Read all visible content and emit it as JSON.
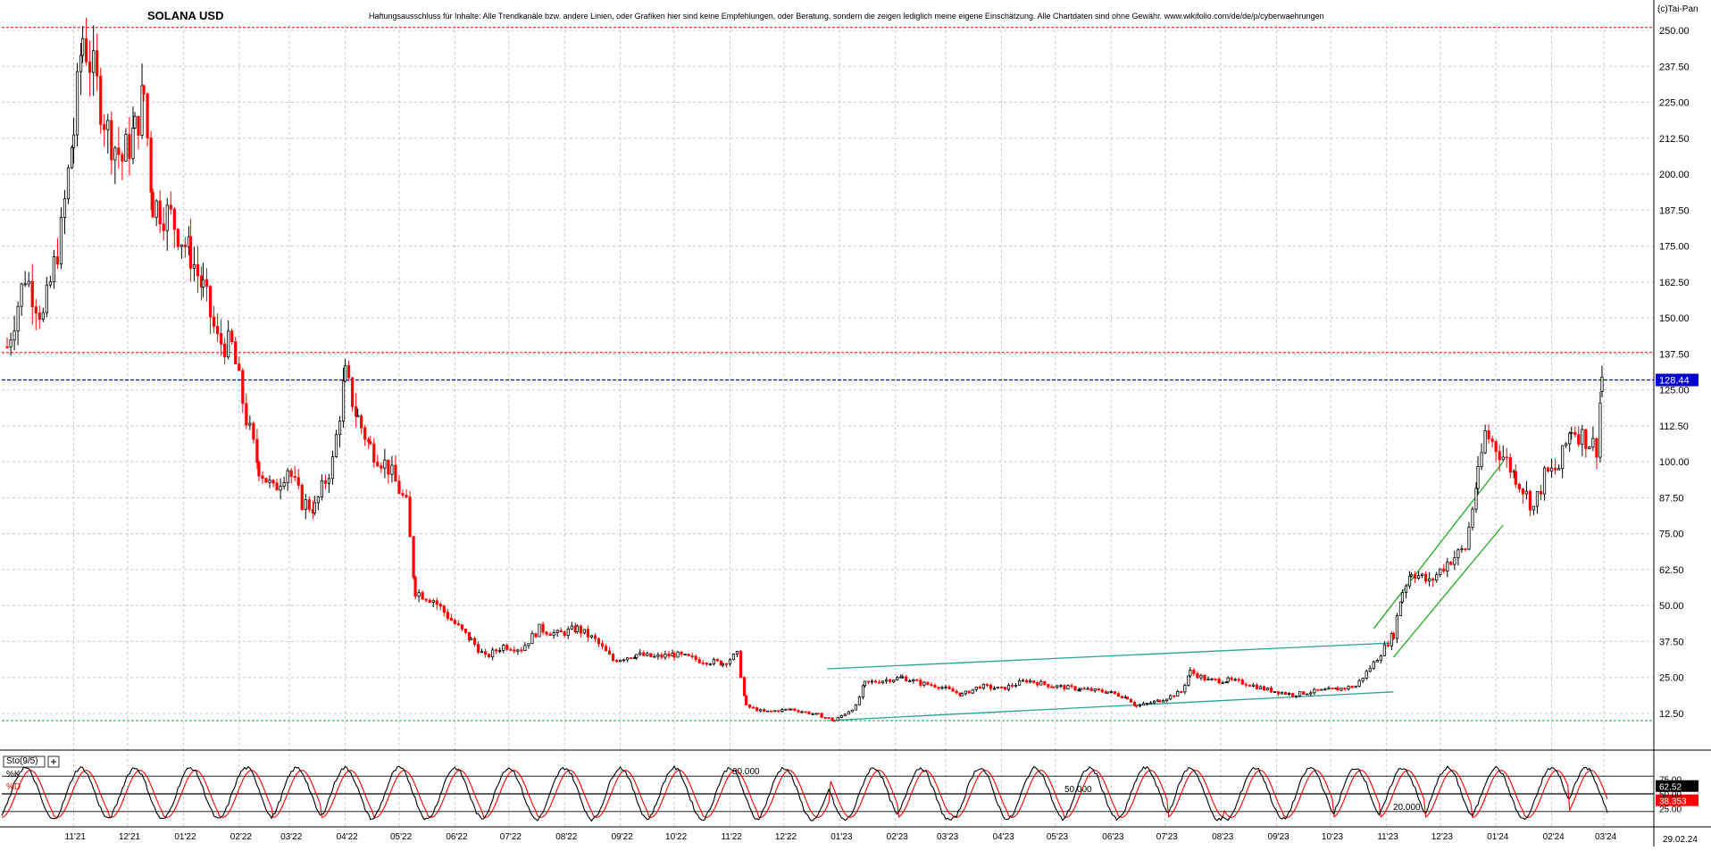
{
  "header": {
    "title": "SOLANA USD",
    "disclaimer": "Haftungsausschluss für Inhalte: Alle Trendkanäle bzw. andere Linien, oder Grafiken hier sind keine Empfehlungen, oder Beratung, sondern die zeigen lediglich meine eigene Einschätzung. Alle Chartdaten sind ohne Gewähr. www.wikifolio.com/de/de/p/cyberwaehrungen",
    "copyright": "(c)Tai-Pan"
  },
  "colors": {
    "grid": "#c8c8c8",
    "up_candle": "#000000",
    "down_candle": "#ff0000",
    "trend_channel": "#2aa198",
    "trend_up": "#22aa22",
    "last_price_line": "#0000cc",
    "resistance_line": "#ff0000",
    "support_line": "#00aa44",
    "stoch_k": "#000000",
    "stoch_d": "#ff0000"
  },
  "chart_data": [
    {
      "type": "candlestick",
      "title": "SOLANA USD",
      "x_labels": [
        "11'21",
        "12'21",
        "01'22",
        "02'22",
        "03'22",
        "04'22",
        "05'22",
        "06'22",
        "07'22",
        "08'22",
        "09'22",
        "10'22",
        "11'22",
        "12'22",
        "01'23",
        "02'23",
        "03'23",
        "04'23",
        "05'23",
        "06'23",
        "07'23",
        "08'23",
        "09'23",
        "10'23",
        "11'23",
        "12'23",
        "01'24",
        "02'24",
        "03'24"
      ],
      "y_ticks": [
        "12.50",
        "25.00",
        "37.50",
        "50.00",
        "62.50",
        "75.00",
        "87.50",
        "100.00",
        "112.50",
        "125.00",
        "137.50",
        "150.00",
        "162.50",
        "175.00",
        "187.50",
        "200.00",
        "212.50",
        "225.00",
        "237.50",
        "250.00"
      ],
      "ylim": [
        0,
        253
      ],
      "last_price": "128.44",
      "last_date": "29.02.24",
      "grid": true,
      "close_series": [
        {
          "d": "2021-09-25",
          "c": 140
        },
        {
          "d": "2021-10-05",
          "c": 165
        },
        {
          "d": "2021-10-15",
          "c": 150
        },
        {
          "d": "2021-10-25",
          "c": 180
        },
        {
          "d": "2021-11-01",
          "c": 215
        },
        {
          "d": "2021-11-06",
          "c": 248
        },
        {
          "d": "2021-11-12",
          "c": 235
        },
        {
          "d": "2021-11-20",
          "c": 215
        },
        {
          "d": "2021-11-28",
          "c": 205
        },
        {
          "d": "2021-12-05",
          "c": 215
        },
        {
          "d": "2021-12-10",
          "c": 228
        },
        {
          "d": "2021-12-15",
          "c": 190
        },
        {
          "d": "2021-12-25",
          "c": 185
        },
        {
          "d": "2022-01-05",
          "c": 172
        },
        {
          "d": "2022-01-12",
          "c": 160
        },
        {
          "d": "2022-01-20",
          "c": 142
        },
        {
          "d": "2022-01-28",
          "c": 140
        },
        {
          "d": "2022-02-05",
          "c": 115
        },
        {
          "d": "2022-02-12",
          "c": 98
        },
        {
          "d": "2022-02-20",
          "c": 90
        },
        {
          "d": "2022-02-28",
          "c": 98
        },
        {
          "d": "2022-03-08",
          "c": 86
        },
        {
          "d": "2022-03-15",
          "c": 84
        },
        {
          "d": "2022-03-25",
          "c": 100
        },
        {
          "d": "2022-04-01",
          "c": 130
        },
        {
          "d": "2022-04-08",
          "c": 115
        },
        {
          "d": "2022-04-15",
          "c": 105
        },
        {
          "d": "2022-04-25",
          "c": 98
        },
        {
          "d": "2022-05-05",
          "c": 85
        },
        {
          "d": "2022-05-10",
          "c": 55
        },
        {
          "d": "2022-05-20",
          "c": 52
        },
        {
          "d": "2022-05-30",
          "c": 45
        },
        {
          "d": "2022-06-10",
          "c": 38
        },
        {
          "d": "2022-06-18",
          "c": 32
        },
        {
          "d": "2022-06-28",
          "c": 36
        },
        {
          "d": "2022-07-08",
          "c": 35
        },
        {
          "d": "2022-07-18",
          "c": 42
        },
        {
          "d": "2022-07-28",
          "c": 40
        },
        {
          "d": "2022-08-08",
          "c": 42
        },
        {
          "d": "2022-08-18",
          "c": 38
        },
        {
          "d": "2022-08-28",
          "c": 31
        },
        {
          "d": "2022-09-10",
          "c": 33
        },
        {
          "d": "2022-09-20",
          "c": 32
        },
        {
          "d": "2022-10-01",
          "c": 33
        },
        {
          "d": "2022-10-15",
          "c": 31
        },
        {
          "d": "2022-10-28",
          "c": 30
        },
        {
          "d": "2022-11-05",
          "c": 33
        },
        {
          "d": "2022-11-10",
          "c": 15
        },
        {
          "d": "2022-11-20",
          "c": 13
        },
        {
          "d": "2022-12-05",
          "c": 14
        },
        {
          "d": "2022-12-20",
          "c": 12
        },
        {
          "d": "2022-12-29",
          "c": 10
        },
        {
          "d": "2023-01-10",
          "c": 15
        },
        {
          "d": "2023-01-15",
          "c": 23
        },
        {
          "d": "2023-01-25",
          "c": 24
        },
        {
          "d": "2023-02-05",
          "c": 25
        },
        {
          "d": "2023-02-15",
          "c": 23
        },
        {
          "d": "2023-02-25",
          "c": 22
        },
        {
          "d": "2023-03-10",
          "c": 19
        },
        {
          "d": "2023-03-20",
          "c": 22
        },
        {
          "d": "2023-04-01",
          "c": 21
        },
        {
          "d": "2023-04-15",
          "c": 24
        },
        {
          "d": "2023-04-30",
          "c": 22
        },
        {
          "d": "2023-05-15",
          "c": 21
        },
        {
          "d": "2023-05-30",
          "c": 20
        },
        {
          "d": "2023-06-10",
          "c": 18
        },
        {
          "d": "2023-06-15",
          "c": 15
        },
        {
          "d": "2023-06-28",
          "c": 17
        },
        {
          "d": "2023-07-10",
          "c": 20
        },
        {
          "d": "2023-07-15",
          "c": 27
        },
        {
          "d": "2023-07-25",
          "c": 24
        },
        {
          "d": "2023-08-05",
          "c": 24
        },
        {
          "d": "2023-08-15",
          "c": 23
        },
        {
          "d": "2023-08-25",
          "c": 21
        },
        {
          "d": "2023-09-10",
          "c": 19
        },
        {
          "d": "2023-09-20",
          "c": 20
        },
        {
          "d": "2023-10-05",
          "c": 21
        },
        {
          "d": "2023-10-15",
          "c": 22
        },
        {
          "d": "2023-10-25",
          "c": 30
        },
        {
          "d": "2023-11-05",
          "c": 40
        },
        {
          "d": "2023-11-10",
          "c": 55
        },
        {
          "d": "2023-11-15",
          "c": 62
        },
        {
          "d": "2023-11-25",
          "c": 58
        },
        {
          "d": "2023-12-05",
          "c": 65
        },
        {
          "d": "2023-12-15",
          "c": 70
        },
        {
          "d": "2023-12-22",
          "c": 95
        },
        {
          "d": "2023-12-26",
          "c": 110
        },
        {
          "d": "2024-01-05",
          "c": 102
        },
        {
          "d": "2024-01-12",
          "c": 95
        },
        {
          "d": "2024-01-22",
          "c": 84
        },
        {
          "d": "2024-01-28",
          "c": 95
        },
        {
          "d": "2024-02-05",
          "c": 98
        },
        {
          "d": "2024-02-12",
          "c": 112
        },
        {
          "d": "2024-02-20",
          "c": 108
        },
        {
          "d": "2024-02-26",
          "c": 105
        },
        {
          "d": "2024-02-29",
          "c": 128.44
        }
      ],
      "trend_channel": {
        "upper": [
          {
            "d": "2022-12-25",
            "y": 28
          },
          {
            "d": "2023-11-05",
            "y": 37
          }
        ],
        "lower": [
          {
            "d": "2022-12-25",
            "y": 10
          },
          {
            "d": "2023-11-05",
            "y": 20
          }
        ]
      },
      "trend_up": {
        "upper": [
          {
            "d": "2023-10-25",
            "y": 42
          },
          {
            "d": "2024-01-05",
            "y": 100
          }
        ],
        "lower": [
          {
            "d": "2023-11-05",
            "y": 32
          },
          {
            "d": "2024-01-05",
            "y": 78
          }
        ]
      },
      "resistance_lines": [
        251,
        138
      ],
      "support_lines": [
        10
      ]
    },
    {
      "type": "line",
      "title": "Sto(9/5)",
      "series": [
        {
          "name": "%K"
        },
        {
          "name": "%D"
        }
      ],
      "ylim": [
        0,
        100
      ],
      "y_ticks": [
        "25.00",
        "50.00",
        "75.00"
      ],
      "levels": [
        "80.000",
        "50.000",
        "20.000"
      ],
      "last_k": "62.52",
      "last_d": "38.353",
      "cycles_peak_dates": [
        "2021-10-05",
        "2021-11-05",
        "2021-12-05",
        "2022-01-05",
        "2022-02-05",
        "2022-03-05",
        "2022-04-01",
        "2022-05-01",
        "2022-06-01",
        "2022-07-01",
        "2022-08-01",
        "2022-09-01",
        "2022-10-01",
        "2022-11-01",
        "2022-12-01",
        "2023-01-20",
        "2023-02-15",
        "2023-03-20",
        "2023-04-20",
        "2023-05-20",
        "2023-06-20",
        "2023-07-15",
        "2023-08-20",
        "2023-09-20",
        "2023-10-15",
        "2023-11-10",
        "2023-12-05",
        "2024-01-01",
        "2024-02-01",
        "2024-02-20"
      ]
    }
  ]
}
